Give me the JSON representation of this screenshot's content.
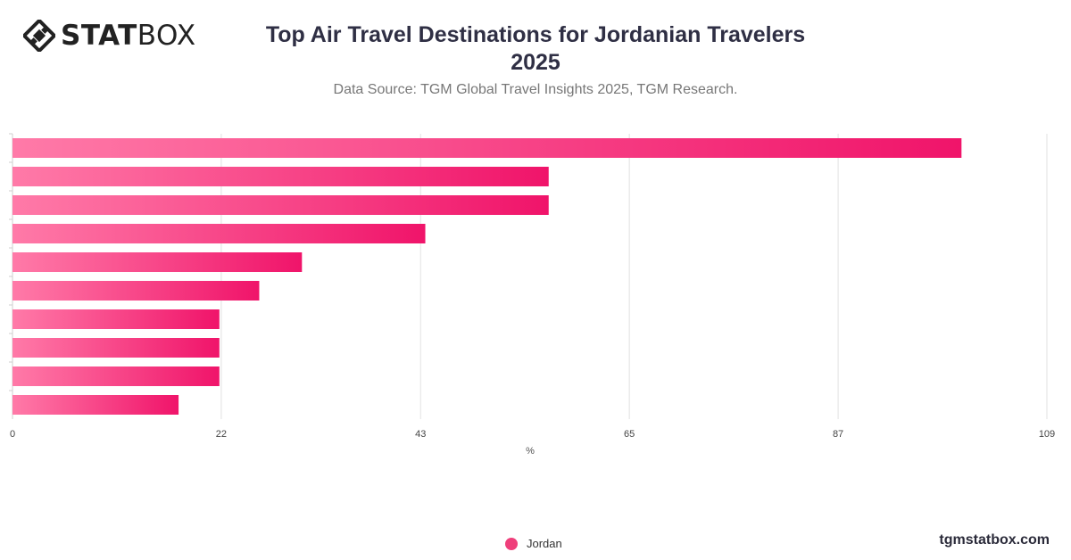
{
  "brand": {
    "logo_bold": "STAT",
    "logo_light": "BOX",
    "logo_icon": "diamond-grid-icon"
  },
  "header": {
    "title_line1": "Top Air Travel Destinations for Jordanian Travelers",
    "title_line2": "2025",
    "subtitle": "Data Source: TGM Global Travel Insights 2025, TGM Research."
  },
  "footer": {
    "site": "tgmstatbox.com"
  },
  "colors": {
    "bar_start": "#ff7aa8",
    "bar_end": "#f0146a",
    "grid": "#e2e2e2",
    "legend": "#ef3f7b"
  },
  "chart_data": {
    "type": "bar",
    "orientation": "horizontal",
    "categories": [
      "",
      "",
      "",
      "",
      "",
      "",
      "",
      "",
      "",
      ""
    ],
    "series": [
      {
        "name": "Jordan",
        "values": [
          100,
          56.5,
          56.5,
          43.5,
          30.5,
          26,
          21.8,
          21.8,
          21.8,
          17.5
        ]
      }
    ],
    "xlabel": "%",
    "xlim": [
      0,
      109
    ],
    "xticks": [
      0,
      22,
      43,
      65,
      87,
      109
    ],
    "grid": true,
    "legend": "bottom-center"
  }
}
